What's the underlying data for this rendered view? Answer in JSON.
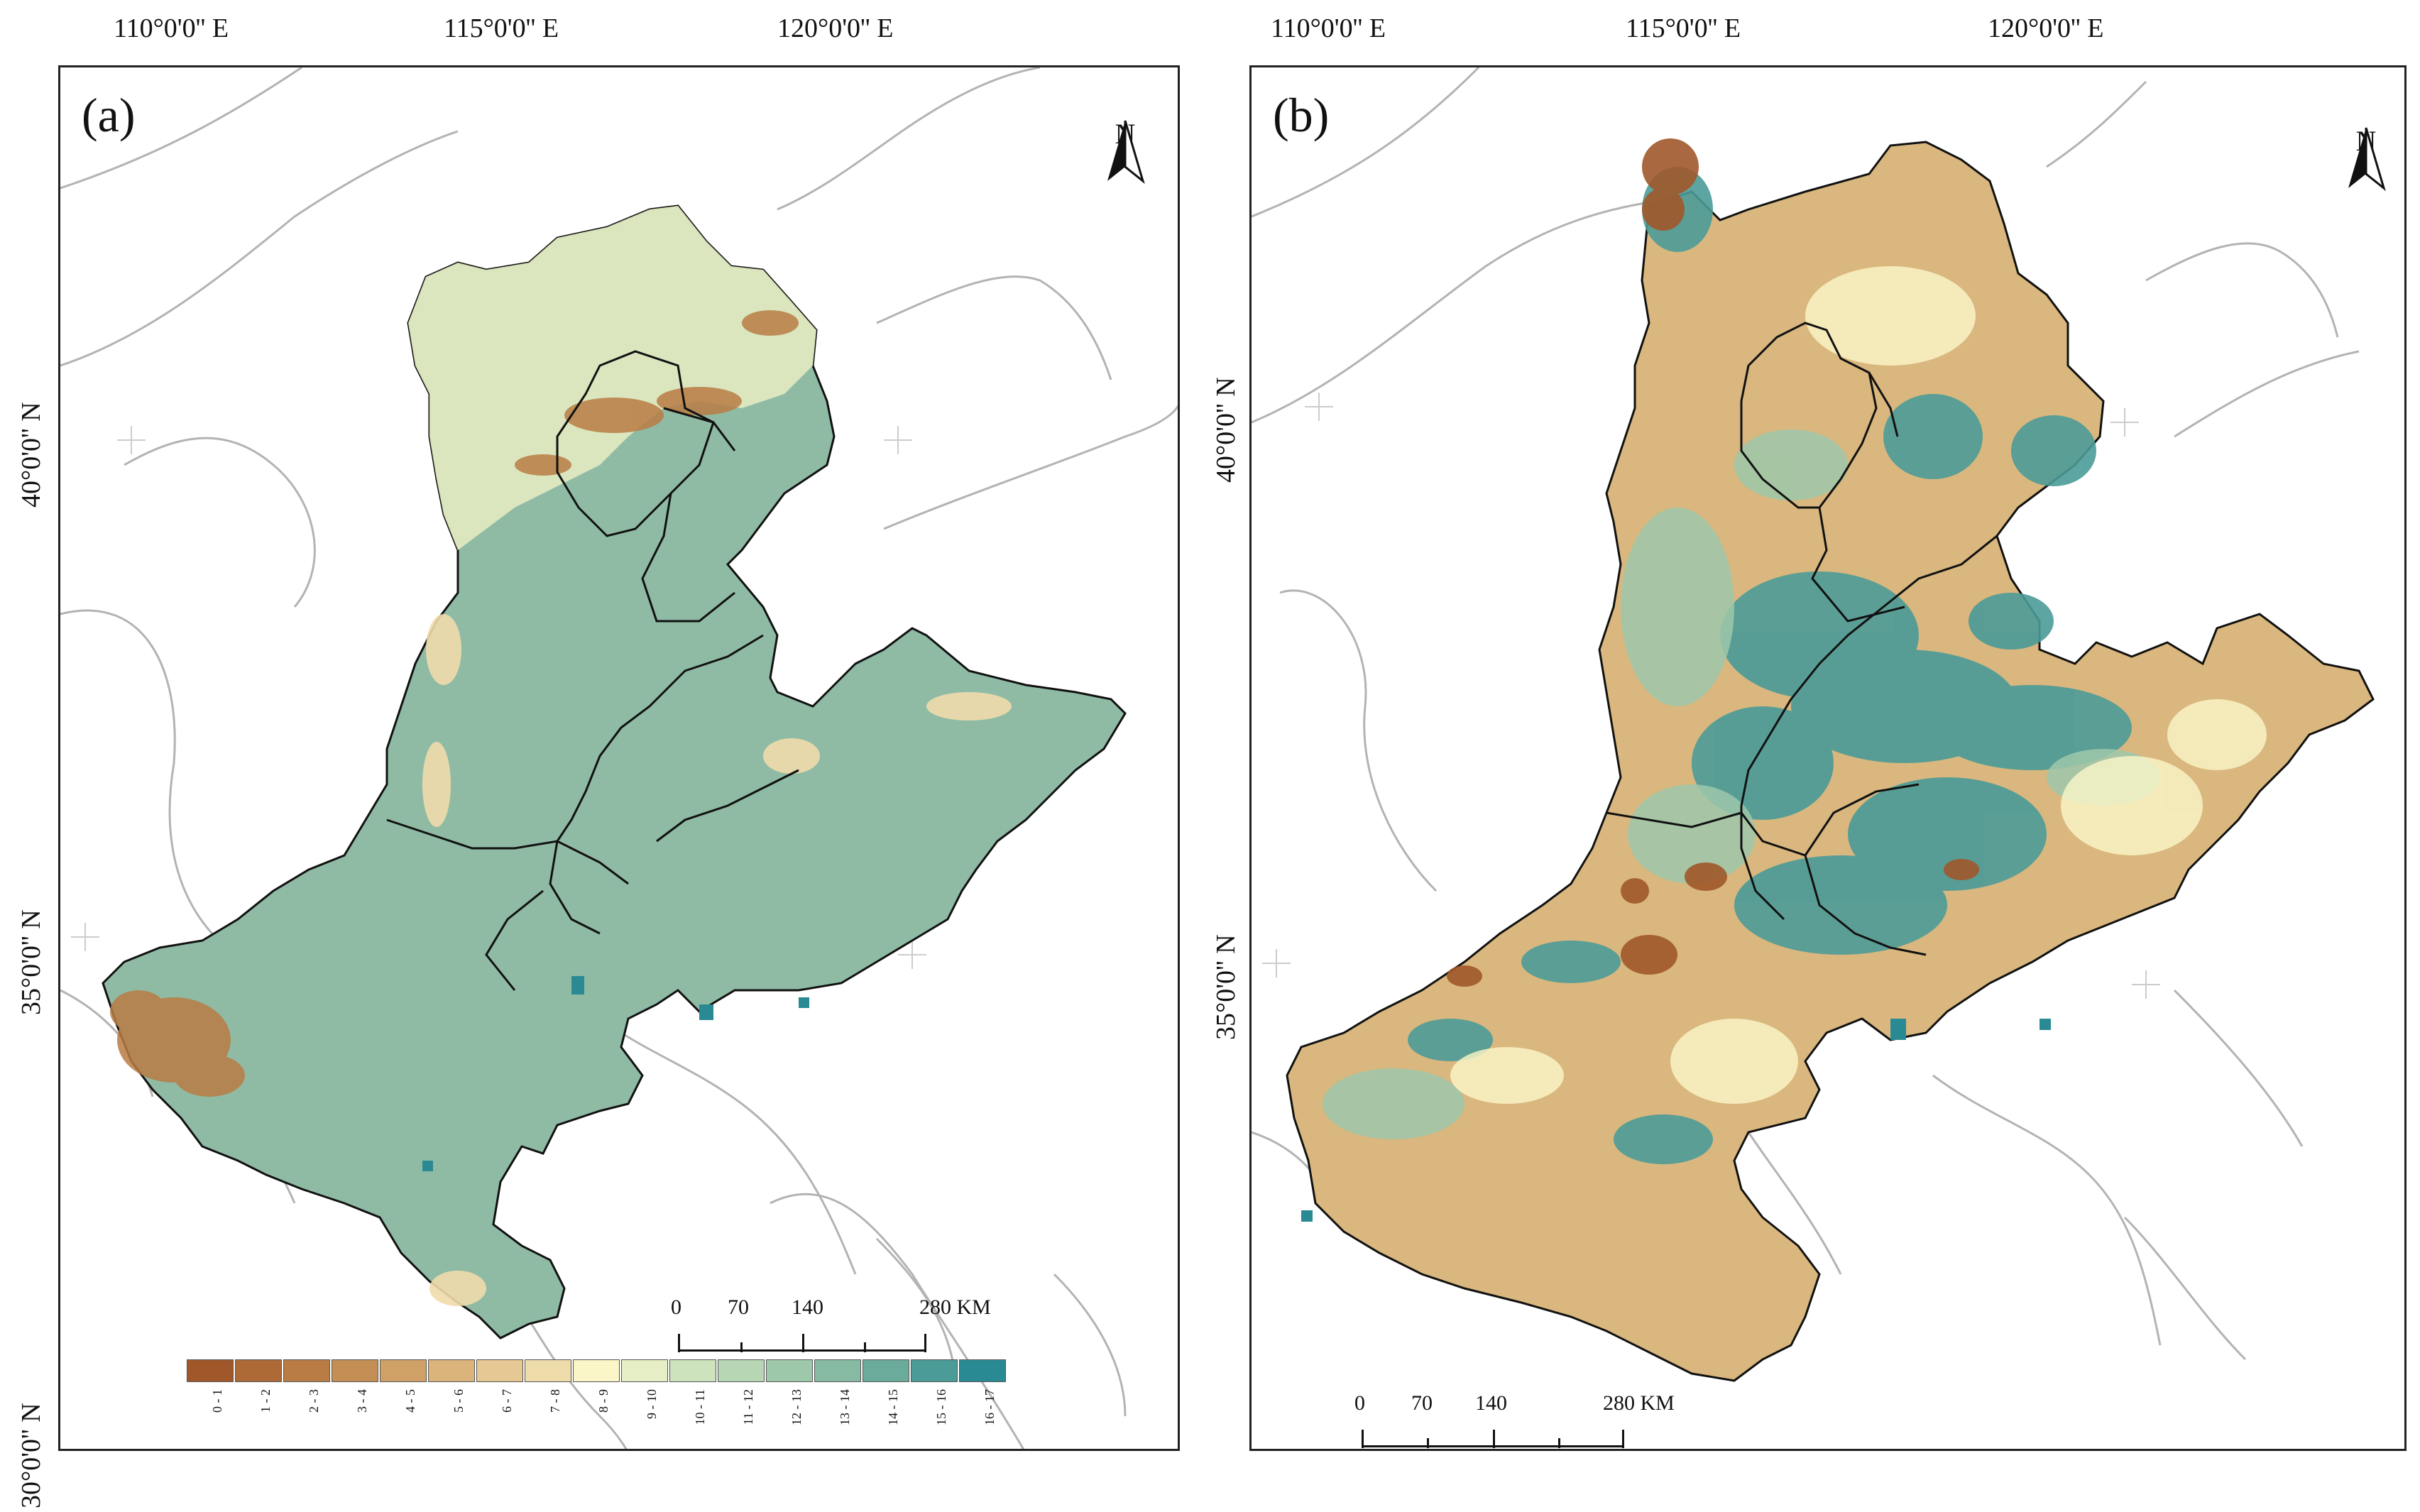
{
  "panels": [
    {
      "label": "(a)",
      "lon_ticks": [
        "110°0'0'' E",
        "115°0'0'' E",
        "120°0'0'' E"
      ],
      "lat_ticks": [
        "40°0'0'' N",
        "35°0'0'' N",
        "30°0'0'' N"
      ],
      "north_label": "N",
      "scale": {
        "labels": [
          "0",
          "70",
          "140",
          "280 KM"
        ]
      },
      "dominant_color": "#8fbba5"
    },
    {
      "label": "(b)",
      "lon_ticks": [
        "110°0'0'' E",
        "115°0'0'' E",
        "120°0'0'' E"
      ],
      "lat_ticks": [
        "40°0'0'' N",
        "35°0'0'' N"
      ],
      "north_label": "N",
      "scale": {
        "labels": [
          "0",
          "70",
          "140",
          "280 KM"
        ]
      },
      "dominant_color": "#d9b77e"
    }
  ],
  "legend": {
    "classes": [
      {
        "label": "0 - 1",
        "color": "#a0582a"
      },
      {
        "label": "1 - 2",
        "color": "#ad6a36"
      },
      {
        "label": "2 - 3",
        "color": "#b97c44"
      },
      {
        "label": "3 - 4",
        "color": "#c48f55"
      },
      {
        "label": "4 - 5",
        "color": "#cfa166"
      },
      {
        "label": "5 - 6",
        "color": "#dab47b"
      },
      {
        "label": "6 - 7",
        "color": "#e5c893"
      },
      {
        "label": "7 - 8",
        "color": "#efdcab"
      },
      {
        "label": "8 - 9",
        "color": "#fbf6c8"
      },
      {
        "label": "9 - 10",
        "color": "#e5eec4"
      },
      {
        "label": "10 - 11",
        "color": "#cde3bd"
      },
      {
        "label": "11 - 12",
        "color": "#b6d6b4"
      },
      {
        "label": "12 - 13",
        "color": "#9ec8aa"
      },
      {
        "label": "13 - 14",
        "color": "#86baa2"
      },
      {
        "label": "14 - 15",
        "color": "#6aab9c"
      },
      {
        "label": "15 - 16",
        "color": "#4b9b98"
      },
      {
        "label": "16 - 17",
        "color": "#2a8a93"
      }
    ]
  }
}
